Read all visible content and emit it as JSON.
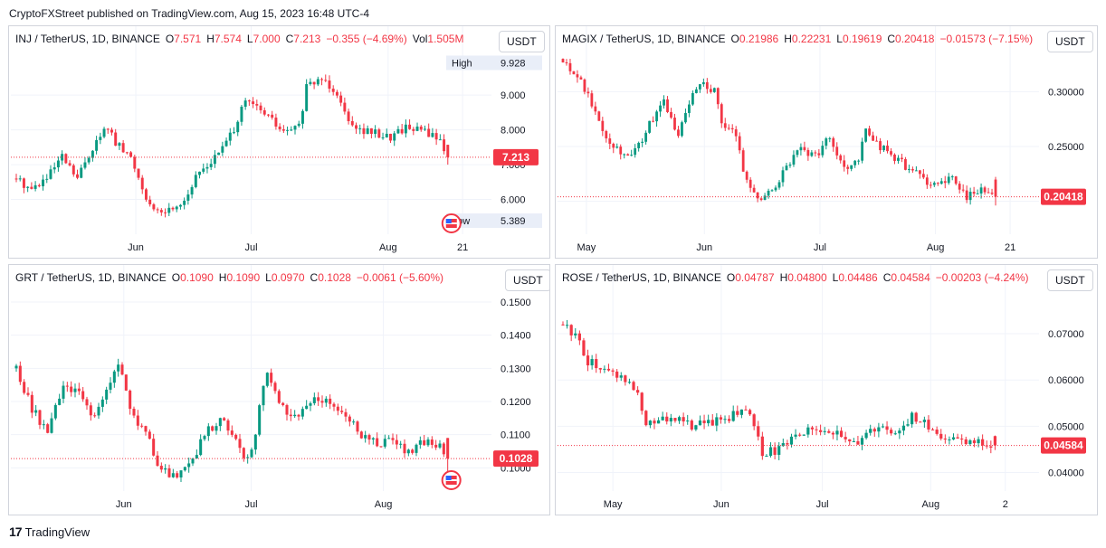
{
  "header": {
    "publisher": "CryptoFXStreet published on TradingView.com, Aug 15, 2023 16:48 UTC-4"
  },
  "footer": {
    "brand": "TradingView",
    "logo_glyph": "17"
  },
  "colors": {
    "up": "#089981",
    "down": "#f23645",
    "grid": "#f0f3fa",
    "price_line": "#f23645",
    "label_bg": "#f23645"
  },
  "chart_data": [
    {
      "type": "candlestick",
      "legend": {
        "symbol": "INJ / TetherUS, 1D, BINANCE",
        "o": "7.571",
        "h": "7.574",
        "l": "7.000",
        "c": "7.213",
        "chg": "−0.355 (−4.69%)",
        "vol": "1.505M"
      },
      "currency": "USDT",
      "ylim": [
        5.0,
        10.2
      ],
      "y_ticks": [
        6.0,
        7.0,
        8.0,
        9.0
      ],
      "y_tick_labels": [
        "6.000",
        "7.000",
        "8.000",
        "9.000"
      ],
      "x_labels": [
        "Jun",
        "Jul",
        "Aug",
        "21"
      ],
      "x_label_pos": [
        0.26,
        0.5,
        0.785,
        0.94
      ],
      "last_price": 7.213,
      "last_label": "7.213",
      "high": {
        "label": "High",
        "value": "9.928",
        "v": 9.928
      },
      "low": {
        "label": "Low",
        "value": "5.389",
        "v": 5.389
      },
      "event_icon": true,
      "anchors": [
        [
          0,
          6.6
        ],
        [
          4,
          6.3
        ],
        [
          8,
          6.6
        ],
        [
          12,
          7.2
        ],
        [
          16,
          6.6
        ],
        [
          20,
          7.5
        ],
        [
          24,
          8.1
        ],
        [
          26,
          7.6
        ],
        [
          30,
          7.2
        ],
        [
          34,
          6.1
        ],
        [
          36,
          5.6
        ],
        [
          40,
          5.7
        ],
        [
          44,
          6.0
        ],
        [
          48,
          6.8
        ],
        [
          52,
          7.2
        ],
        [
          56,
          7.8
        ],
        [
          60,
          8.8
        ],
        [
          62,
          8.7
        ],
        [
          66,
          8.4
        ],
        [
          70,
          7.9
        ],
        [
          74,
          8.1
        ],
        [
          76,
          9.2
        ],
        [
          80,
          9.5
        ],
        [
          84,
          9.1
        ],
        [
          86,
          8.5
        ],
        [
          90,
          8.0
        ],
        [
          94,
          7.9
        ],
        [
          98,
          7.8
        ],
        [
          102,
          8.1
        ],
        [
          106,
          8.0
        ],
        [
          110,
          7.8
        ],
        [
          113,
          7.3
        ]
      ]
    },
    {
      "type": "candlestick",
      "legend": {
        "symbol": "MAGIX / TetherUS, 1D, BINANCE",
        "o": "0.21986",
        "h": "0.22231",
        "l": "0.19619",
        "c": "0.20418",
        "chg": "−0.01573 (−7.15%)",
        "vol": ""
      },
      "currency": "USDT",
      "ylim": [
        0.17,
        0.335
      ],
      "y_ticks": [
        0.2,
        0.25,
        0.3
      ],
      "y_tick_labels": [
        "0.20000",
        "0.25000",
        "0.30000"
      ],
      "x_labels": [
        "May",
        "Jun",
        "Jul",
        "Aug",
        "21"
      ],
      "x_label_pos": [
        0.06,
        0.305,
        0.545,
        0.785,
        0.94
      ],
      "last_price": 0.20418,
      "last_label": "0.20418",
      "high": null,
      "low": null,
      "event_icon": false,
      "anchors": [
        [
          0,
          0.33
        ],
        [
          4,
          0.315
        ],
        [
          8,
          0.29
        ],
        [
          12,
          0.26
        ],
        [
          16,
          0.245
        ],
        [
          20,
          0.245
        ],
        [
          24,
          0.27
        ],
        [
          28,
          0.29
        ],
        [
          32,
          0.26
        ],
        [
          36,
          0.3
        ],
        [
          38,
          0.31
        ],
        [
          42,
          0.3
        ],
        [
          44,
          0.27
        ],
        [
          48,
          0.26
        ],
        [
          50,
          0.23
        ],
        [
          54,
          0.2
        ],
        [
          58,
          0.21
        ],
        [
          62,
          0.23
        ],
        [
          66,
          0.25
        ],
        [
          70,
          0.24
        ],
        [
          74,
          0.26
        ],
        [
          78,
          0.23
        ],
        [
          82,
          0.24
        ],
        [
          84,
          0.265
        ],
        [
          88,
          0.25
        ],
        [
          92,
          0.24
        ],
        [
          96,
          0.23
        ],
        [
          100,
          0.22
        ],
        [
          104,
          0.215
        ],
        [
          108,
          0.22
        ],
        [
          112,
          0.205
        ],
        [
          116,
          0.21
        ],
        [
          120,
          0.205
        ]
      ]
    },
    {
      "type": "candlestick",
      "legend": {
        "symbol": "GRT / TetherUS, 1D, BINANCE",
        "o": "0.1090",
        "h": "0.1090",
        "l": "0.0970",
        "c": "0.1028",
        "chg": "−0.0061 (−5.60%)",
        "vol": ""
      },
      "currency": "USDT",
      "ylim": [
        0.093,
        0.153
      ],
      "y_ticks": [
        0.1,
        0.11,
        0.12,
        0.13,
        0.14,
        0.15
      ],
      "y_tick_labels": [
        "0.1000",
        "0.1100",
        "0.1200",
        "0.1300",
        "0.1400",
        "0.1500"
      ],
      "x_labels": [
        "Jun",
        "Jul",
        "Aug"
      ],
      "x_label_pos": [
        0.235,
        0.5,
        0.775
      ],
      "last_price": 0.1028,
      "last_label": "0.1028",
      "high": null,
      "low": null,
      "event_icon": true,
      "anchors": [
        [
          0,
          0.13
        ],
        [
          4,
          0.118
        ],
        [
          8,
          0.11
        ],
        [
          12,
          0.125
        ],
        [
          16,
          0.122
        ],
        [
          20,
          0.115
        ],
        [
          24,
          0.125
        ],
        [
          26,
          0.132
        ],
        [
          30,
          0.115
        ],
        [
          34,
          0.11
        ],
        [
          36,
          0.1
        ],
        [
          40,
          0.098
        ],
        [
          44,
          0.1
        ],
        [
          48,
          0.11
        ],
        [
          52,
          0.115
        ],
        [
          56,
          0.11
        ],
        [
          58,
          0.102
        ],
        [
          60,
          0.105
        ],
        [
          64,
          0.13
        ],
        [
          68,
          0.118
        ],
        [
          72,
          0.115
        ],
        [
          76,
          0.122
        ],
        [
          80,
          0.12
        ],
        [
          84,
          0.116
        ],
        [
          88,
          0.11
        ],
        [
          92,
          0.107
        ],
        [
          96,
          0.108
        ],
        [
          100,
          0.105
        ],
        [
          104,
          0.108
        ],
        [
          108,
          0.107
        ],
        [
          110,
          0.1028
        ]
      ]
    },
    {
      "type": "candlestick",
      "legend": {
        "symbol": "ROSE / TetherUS, 1D, BINANCE",
        "o": "0.04787",
        "h": "0.04800",
        "l": "0.04486",
        "c": "0.04584",
        "chg": "−0.00203 (−4.24%)",
        "vol": ""
      },
      "currency": "USDT",
      "ylim": [
        0.036,
        0.079
      ],
      "y_ticks": [
        0.04,
        0.05,
        0.06,
        0.07
      ],
      "y_tick_labels": [
        "0.04000",
        "0.05000",
        "0.06000",
        "0.07000"
      ],
      "x_labels": [
        "May",
        "Jun",
        "Jul",
        "Aug",
        "2"
      ],
      "x_label_pos": [
        0.115,
        0.34,
        0.55,
        0.775,
        0.93
      ],
      "last_price": 0.04584,
      "last_label": "0.04584",
      "high": null,
      "low": null,
      "event_icon": false,
      "anchors": [
        [
          0,
          0.072
        ],
        [
          3,
          0.07
        ],
        [
          6,
          0.064
        ],
        [
          10,
          0.062
        ],
        [
          14,
          0.061
        ],
        [
          18,
          0.058
        ],
        [
          20,
          0.05
        ],
        [
          24,
          0.052
        ],
        [
          28,
          0.051
        ],
        [
          32,
          0.05
        ],
        [
          36,
          0.051
        ],
        [
          40,
          0.052
        ],
        [
          44,
          0.054
        ],
        [
          46,
          0.05
        ],
        [
          48,
          0.044
        ],
        [
          52,
          0.045
        ],
        [
          56,
          0.048
        ],
        [
          60,
          0.05
        ],
        [
          64,
          0.049
        ],
        [
          68,
          0.047
        ],
        [
          72,
          0.047
        ],
        [
          76,
          0.05
        ],
        [
          80,
          0.049
        ],
        [
          84,
          0.052
        ],
        [
          88,
          0.05
        ],
        [
          92,
          0.047
        ],
        [
          96,
          0.0465
        ],
        [
          100,
          0.047
        ],
        [
          104,
          0.0458
        ]
      ]
    }
  ]
}
